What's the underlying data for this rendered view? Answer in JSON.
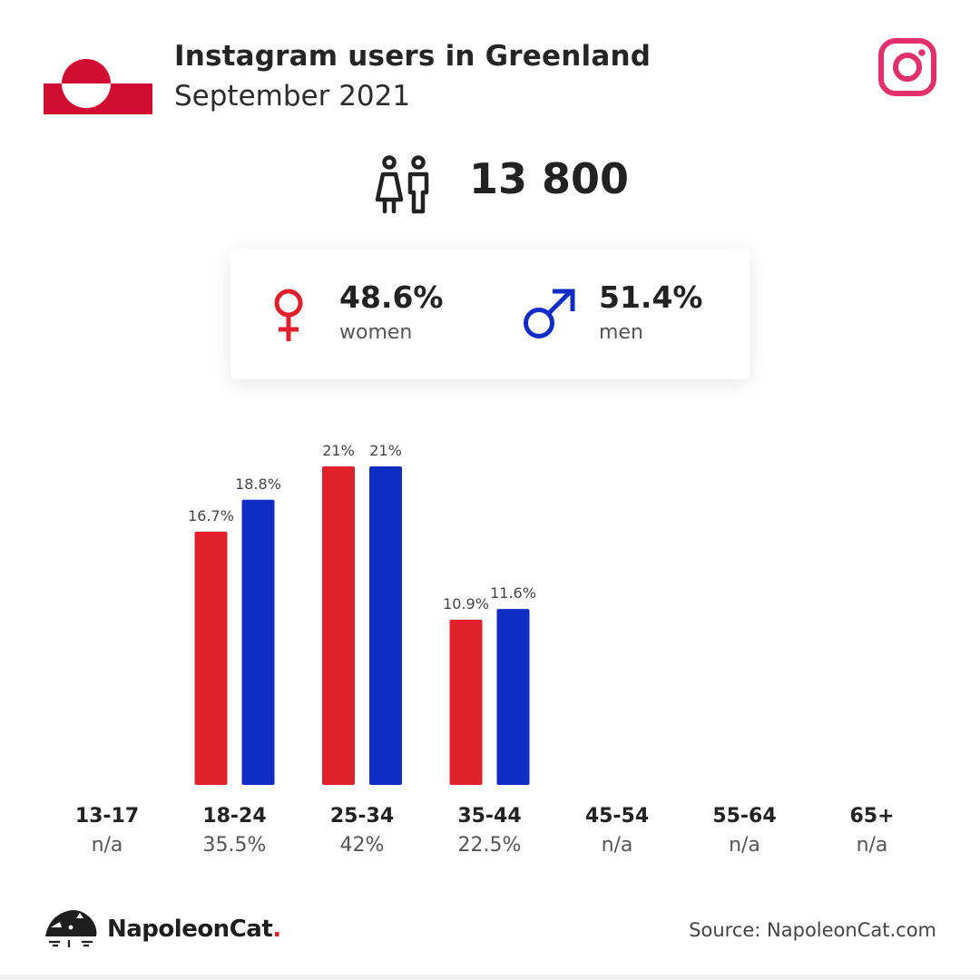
{
  "header": {
    "title": "Instagram users in Greenland",
    "subtitle": "September 2021"
  },
  "summary": {
    "total_users": "13 800"
  },
  "gender": {
    "women_pct": "48.6%",
    "women_label": "women",
    "men_pct": "51.4%",
    "men_label": "men"
  },
  "colors": {
    "women": "#e0202b",
    "men": "#0f2cc4",
    "flag_red": "#d00c33",
    "instagram": "#e1306c"
  },
  "icons": {
    "flag": "greenland-flag-icon",
    "platform": "instagram-icon",
    "users": "users-icon",
    "women": "female-symbol-icon",
    "men": "male-symbol-icon",
    "brand": "napoleoncat-logo-icon"
  },
  "chart_data": {
    "type": "bar",
    "categories": [
      "13-17",
      "18-24",
      "25-34",
      "35-44",
      "45-54",
      "55-64",
      "65+"
    ],
    "category_totals": [
      "n/a",
      "35.5%",
      "42%",
      "22.5%",
      "n/a",
      "n/a",
      "n/a"
    ],
    "series": [
      {
        "color": "#e0202b",
        "values": [
          null,
          16.7,
          21,
          10.9,
          null,
          null,
          null
        ],
        "labels": [
          "",
          "16.7%",
          "21%",
          "10.9%",
          "",
          "",
          ""
        ]
      },
      {
        "color": "#0f2cc4",
        "values": [
          null,
          18.8,
          21,
          11.6,
          null,
          null,
          null
        ],
        "labels": [
          "",
          "18.8%",
          "21%",
          "11.6%",
          "",
          "",
          ""
        ]
      }
    ],
    "ylim": [
      0,
      21
    ],
    "grid": false
  },
  "footer": {
    "brand_name": "NapoleonCat",
    "brand_dot": ".",
    "source": "Source: NapoleonCat.com"
  }
}
